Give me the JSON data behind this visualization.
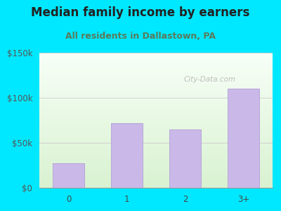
{
  "title": "Median family income by earners",
  "subtitle": "All residents in Dallastown, PA",
  "categories": [
    "0",
    "1",
    "2",
    "3+"
  ],
  "values": [
    27000,
    72000,
    65000,
    110000
  ],
  "bar_color": "#c9b8e8",
  "bar_edge_color": "#b8a8d8",
  "ylim": [
    0,
    150000
  ],
  "yticks": [
    0,
    50000,
    100000,
    150000
  ],
  "ytick_labels": [
    "$0",
    "$50k",
    "$100k",
    "$150k"
  ],
  "background_outer": "#00e8ff",
  "title_color": "#222222",
  "subtitle_color": "#5a7a5a",
  "title_fontsize": 12,
  "subtitle_fontsize": 9,
  "watermark": "City-Data.com"
}
